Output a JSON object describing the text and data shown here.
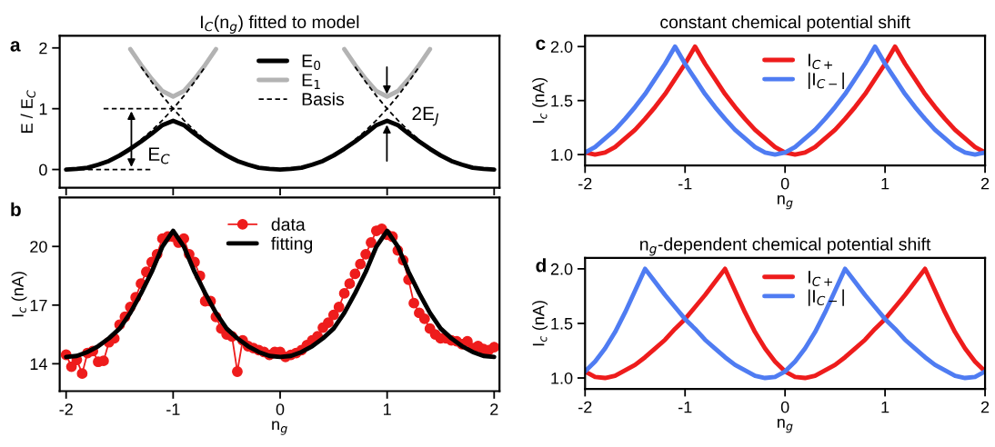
{
  "chart_data": [
    {
      "type": "line",
      "title": "I$_{C}$(n$_{g}$) fitted to model",
      "ylabel": "E / E$_{C}$",
      "xlim": [
        -2.06,
        2.05
      ],
      "ylim": [
        -0.3,
        2.2
      ],
      "xticks": [
        -2,
        -1,
        0,
        1,
        2
      ],
      "yticks": [
        0,
        1,
        2
      ],
      "tick_labels": "y",
      "legend": "top",
      "annotations": [
        "a",
        "E$_{C}$",
        "2E$_{J}$"
      ],
      "x": [
        -2,
        -1.9,
        -1.8,
        -1.7,
        -1.6,
        -1.5,
        -1.4,
        -1.3,
        -1.2,
        -1.1,
        -1,
        -0.9,
        -0.8,
        -0.7,
        -0.6,
        -0.5,
        -0.4,
        -0.3,
        -0.2,
        -0.1,
        0,
        0.1,
        0.2,
        0.3,
        0.4,
        0.5,
        0.6,
        0.7,
        0.8,
        0.9,
        1,
        1.1,
        1.2,
        1.3,
        1.4,
        1.5,
        1.6,
        1.7,
        1.8,
        1.9,
        2
      ],
      "series": [
        {
          "name": "E$_{0}$",
          "color": "#000000",
          "line_style": "solid",
          "values": [
            0,
            0.01,
            0.03,
            0.08,
            0.14,
            0.23,
            0.34,
            0.46,
            0.59,
            0.73,
            0.8,
            0.73,
            0.59,
            0.46,
            0.34,
            0.23,
            0.14,
            0.08,
            0.03,
            0.01,
            0,
            0.01,
            0.03,
            0.08,
            0.14,
            0.23,
            0.34,
            0.46,
            0.59,
            0.73,
            0.8,
            0.73,
            0.59,
            0.46,
            0.34,
            0.23,
            0.14,
            0.08,
            0.03,
            0.01,
            0
          ]
        },
        {
          "name": "E$_{1}$",
          "color": "#b3b3b3",
          "line_style": "solid",
          "values": [
            null,
            null,
            null,
            null,
            null,
            null,
            1.98,
            1.72,
            1.49,
            1.29,
            1.2,
            1.29,
            1.49,
            1.72,
            1.98,
            null,
            null,
            null,
            null,
            null,
            null,
            null,
            null,
            null,
            null,
            null,
            1.98,
            1.72,
            1.49,
            1.29,
            1.2,
            1.29,
            1.49,
            1.72,
            1.98,
            null,
            null,
            null,
            null,
            null,
            null
          ]
        },
        {
          "name": "Basis",
          "color": "#000000",
          "line_style": "dashed",
          "x": [
            -1.3,
            -1.2,
            -1.1,
            -1,
            -0.9,
            -0.8,
            -0.7
          ],
          "values": [
            0.49,
            0.64,
            0.81,
            1,
            1.21,
            1.44,
            1.69
          ]
        },
        {
          "color": "#000000",
          "line_style": "dashed",
          "x": [
            -1.3,
            -1.2,
            -1.1,
            -1,
            -0.9,
            -0.8,
            -0.7
          ],
          "values": [
            1.69,
            1.44,
            1.21,
            1,
            0.81,
            0.64,
            0.49
          ]
        },
        {
          "color": "#000000",
          "line_style": "dashed",
          "x": [
            0.7,
            0.8,
            0.9,
            1,
            1.1,
            1.2,
            1.3
          ],
          "values": [
            0.49,
            0.64,
            0.81,
            1,
            1.21,
            1.44,
            1.69
          ]
        },
        {
          "color": "#000000",
          "line_style": "dashed",
          "x": [
            0.7,
            0.8,
            0.9,
            1,
            1.1,
            1.2,
            1.3
          ],
          "values": [
            1.69,
            1.44,
            1.21,
            1,
            0.81,
            0.64,
            0.49
          ]
        },
        {
          "color": "#000000",
          "line_style": "dashed",
          "x": [
            -1.95,
            -1.2
          ],
          "values": [
            0,
            0
          ]
        },
        {
          "color": "#000000",
          "line_style": "dashed",
          "x": [
            -1.65,
            -0.92
          ],
          "values": [
            1,
            1
          ]
        }
      ]
    },
    {
      "type": "line",
      "xlabel": "n$_{g}$",
      "ylabel": "I$_{c}$ (nA)",
      "xlim": [
        -2.06,
        2.05
      ],
      "ylim": [
        12.6,
        22.5
      ],
      "xticks": [
        -2,
        -1,
        0,
        1,
        2
      ],
      "yticks": [
        14,
        17,
        20
      ],
      "legend": "top",
      "annotations": [
        "b"
      ],
      "series": [
        {
          "name": "data",
          "color": "#ee1c1c",
          "line_style": "solid",
          "marker": "circle",
          "x": [
            -2,
            -1.95,
            -1.9,
            -1.85,
            -1.8,
            -1.75,
            -1.7,
            -1.65,
            -1.6,
            -1.55,
            -1.5,
            -1.45,
            -1.4,
            -1.35,
            -1.3,
            -1.25,
            -1.2,
            -1.15,
            -1.1,
            -1.05,
            -1,
            -0.95,
            -0.9,
            -0.85,
            -0.8,
            -0.75,
            -0.7,
            -0.65,
            -0.6,
            -0.55,
            -0.5,
            -0.45,
            -0.4,
            -0.35,
            -0.3,
            -0.25,
            -0.2,
            -0.15,
            -0.1,
            -0.05,
            0,
            0.05,
            0.1,
            0.15,
            0.2,
            0.25,
            0.3,
            0.35,
            0.4,
            0.45,
            0.5,
            0.55,
            0.6,
            0.65,
            0.7,
            0.75,
            0.8,
            0.85,
            0.9,
            0.95,
            1,
            1.05,
            1.1,
            1.15,
            1.2,
            1.25,
            1.3,
            1.35,
            1.4,
            1.45,
            1.5,
            1.55,
            1.6,
            1.65,
            1.7,
            1.75,
            1.8,
            1.85,
            1.9,
            1.95,
            2
          ],
          "values": [
            14.46,
            13.85,
            14.2,
            13.5,
            14.55,
            14.65,
            14.1,
            14.15,
            15.1,
            15.3,
            16.0,
            16.4,
            16.9,
            17.4,
            18.1,
            18.7,
            19.2,
            19.6,
            20.4,
            20.5,
            20.5,
            20.2,
            20.4,
            19.6,
            19.2,
            18.5,
            17.2,
            17.2,
            16.4,
            15.8,
            15.5,
            15.4,
            13.6,
            15.2,
            14.9,
            14.8,
            14.7,
            14.6,
            14.45,
            14.6,
            14.6,
            14.35,
            14.45,
            14.55,
            14.7,
            14.95,
            15.2,
            15.4,
            15.85,
            16.1,
            16.5,
            16.9,
            17.6,
            18.1,
            18.6,
            19.1,
            19.6,
            20.2,
            20.8,
            20.9,
            20.6,
            20.5,
            19.8,
            19.3,
            18.3,
            17.1,
            16.6,
            16.3,
            15.8,
            15.5,
            15.3,
            15.3,
            15.2,
            15.15,
            15.0,
            15.15,
            14.8,
            14.9,
            14.75,
            14.7,
            14.85
          ]
        },
        {
          "name": "fitting",
          "color": "#000000",
          "line_style": "solid",
          "x": [
            -2,
            -1.9,
            -1.8,
            -1.7,
            -1.6,
            -1.5,
            -1.4,
            -1.3,
            -1.2,
            -1.1,
            -1,
            -0.9,
            -0.8,
            -0.7,
            -0.6,
            -0.5,
            -0.4,
            -0.3,
            -0.2,
            -0.1,
            0,
            0.1,
            0.2,
            0.3,
            0.4,
            0.5,
            0.6,
            0.7,
            0.8,
            0.9,
            1,
            1.1,
            1.2,
            1.3,
            1.4,
            1.5,
            1.6,
            1.7,
            1.8,
            1.9,
            2
          ],
          "values": [
            14.35,
            14.4,
            14.6,
            14.9,
            15.3,
            15.8,
            16.6,
            17.6,
            18.7,
            20.0,
            20.8,
            20.0,
            18.7,
            17.6,
            16.6,
            15.8,
            15.3,
            14.9,
            14.6,
            14.4,
            14.35,
            14.4,
            14.6,
            14.9,
            15.3,
            15.8,
            16.6,
            17.6,
            18.7,
            20.0,
            20.8,
            20.0,
            18.7,
            17.6,
            16.6,
            15.8,
            15.3,
            14.9,
            14.6,
            14.4,
            14.35
          ]
        }
      ]
    },
    {
      "type": "line",
      "title": "constant chemical potential shift",
      "xlabel": "n$_{g}$",
      "ylabel": "I$_{c}$ (nA)",
      "xlim": [
        -2,
        2
      ],
      "ylim": [
        0.9,
        2.1
      ],
      "xticks": [
        -2,
        -1,
        0,
        1,
        2
      ],
      "yticks": [
        {
          "value": 1,
          "label": "1.0"
        },
        {
          "value": 1.5,
          "label": "1.5"
        },
        {
          "value": 2,
          "label": "2.0"
        }
      ],
      "legend": "top",
      "annotations": [
        "c"
      ],
      "x": [
        -2,
        -1.9,
        -1.8,
        -1.7,
        -1.6,
        -1.5,
        -1.4,
        -1.3,
        -1.2,
        -1.1,
        -1,
        -0.9,
        -0.8,
        -0.7,
        -0.6,
        -0.5,
        -0.4,
        -0.3,
        -0.2,
        -0.1,
        0,
        0.1,
        0.2,
        0.3,
        0.4,
        0.5,
        0.6,
        0.7,
        0.8,
        0.9,
        1,
        1.1,
        1.2,
        1.3,
        1.4,
        1.5,
        1.6,
        1.7,
        1.8,
        1.9,
        2
      ],
      "series": [
        {
          "name": "I$_{C+}$",
          "color": "#ee1c1c",
          "line_style": "solid",
          "values": [
            1.02,
            1.0,
            1.02,
            1.07,
            1.15,
            1.23,
            1.33,
            1.44,
            1.56,
            1.7,
            1.84,
            2.0,
            1.84,
            1.7,
            1.56,
            1.44,
            1.33,
            1.23,
            1.15,
            1.07,
            1.02,
            1.0,
            1.02,
            1.07,
            1.15,
            1.23,
            1.33,
            1.44,
            1.56,
            1.7,
            1.84,
            2.0,
            1.84,
            1.7,
            1.56,
            1.44,
            1.33,
            1.23,
            1.15,
            1.07,
            1.02
          ]
        },
        {
          "name": "|I$_{C−}$|",
          "color": "#4f7cf2",
          "line_style": "solid",
          "values": [
            1.02,
            1.07,
            1.15,
            1.23,
            1.33,
            1.44,
            1.56,
            1.7,
            1.84,
            2.0,
            1.84,
            1.7,
            1.56,
            1.44,
            1.33,
            1.23,
            1.15,
            1.07,
            1.02,
            1.0,
            1.02,
            1.07,
            1.15,
            1.23,
            1.33,
            1.44,
            1.56,
            1.7,
            1.84,
            2.0,
            1.84,
            1.7,
            1.56,
            1.44,
            1.33,
            1.23,
            1.15,
            1.07,
            1.02,
            1.0,
            1.02
          ]
        }
      ]
    },
    {
      "type": "line",
      "title": "n$_{g}$-dependent chemical potential shift",
      "xlabel": "n$_{g}$",
      "ylabel": "I$_{c}$ (nA)",
      "xlim": [
        -2,
        2
      ],
      "ylim": [
        0.9,
        2.1
      ],
      "xticks": [
        -2,
        -1,
        0,
        1,
        2
      ],
      "yticks": [
        {
          "value": 1,
          "label": "1.0"
        },
        {
          "value": 1.5,
          "label": "1.5"
        },
        {
          "value": 2,
          "label": "2.0"
        }
      ],
      "legend": "top",
      "annotations": [
        "d"
      ],
      "x": [
        -2,
        -1.9,
        -1.8,
        -1.7,
        -1.6,
        -1.5,
        -1.4,
        -1.3,
        -1.2,
        -1.1,
        -1,
        -0.9,
        -0.8,
        -0.7,
        -0.6,
        -0.5,
        -0.4,
        -0.3,
        -0.2,
        -0.1,
        0,
        0.1,
        0.2,
        0.3,
        0.4,
        0.5,
        0.6,
        0.7,
        0.8,
        0.9,
        1,
        1.1,
        1.2,
        1.3,
        1.4,
        1.5,
        1.6,
        1.7,
        1.8,
        1.9,
        2
      ],
      "series": [
        {
          "name": "I$_{C+}$",
          "color": "#ee1c1c",
          "line_style": "solid",
          "values": [
            1.06,
            1.01,
            1.0,
            1.02,
            1.07,
            1.12,
            1.19,
            1.27,
            1.35,
            1.45,
            1.54,
            1.65,
            1.76,
            1.88,
            2.0,
            1.8,
            1.6,
            1.42,
            1.27,
            1.15,
            1.06,
            1.01,
            1.0,
            1.02,
            1.07,
            1.12,
            1.19,
            1.27,
            1.35,
            1.45,
            1.54,
            1.65,
            1.76,
            1.88,
            2.0,
            1.8,
            1.6,
            1.42,
            1.27,
            1.15,
            1.06
          ]
        },
        {
          "name": "|I$_{C−}$|",
          "color": "#4f7cf2",
          "line_style": "solid",
          "values": [
            1.06,
            1.15,
            1.27,
            1.42,
            1.6,
            1.8,
            2.0,
            1.88,
            1.76,
            1.65,
            1.54,
            1.45,
            1.35,
            1.27,
            1.19,
            1.12,
            1.07,
            1.02,
            1.0,
            1.01,
            1.06,
            1.15,
            1.27,
            1.42,
            1.6,
            1.8,
            2.0,
            1.88,
            1.76,
            1.65,
            1.54,
            1.45,
            1.35,
            1.27,
            1.19,
            1.12,
            1.07,
            1.02,
            1.0,
            1.01,
            1.06
          ]
        }
      ]
    }
  ]
}
